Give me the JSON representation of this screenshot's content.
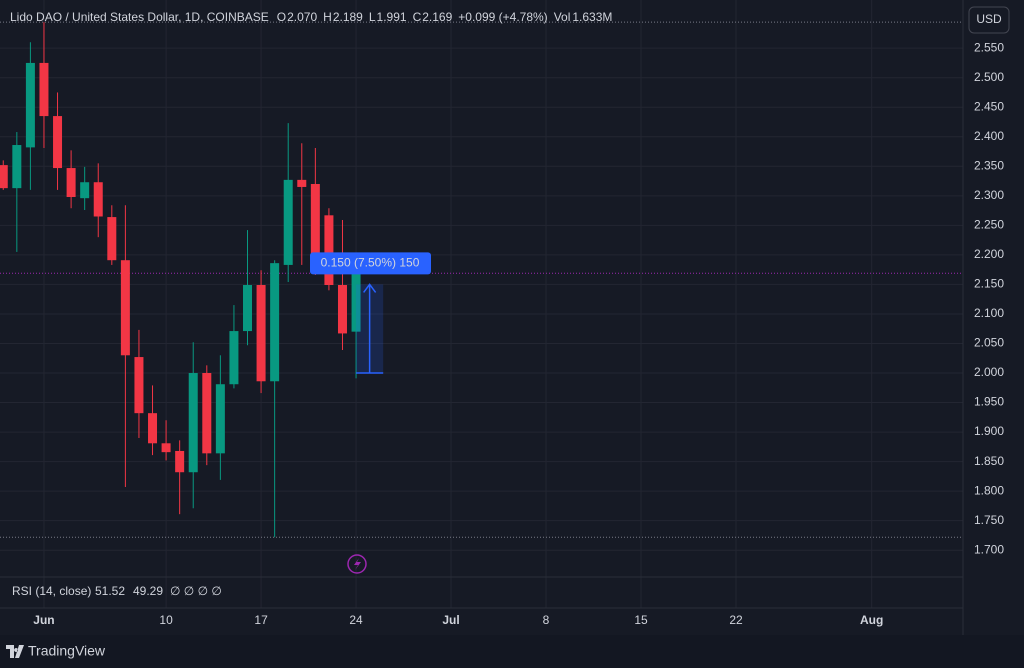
{
  "legend": {
    "symbol": "Lido DAO / United States Dollar, 1D, COINBASE",
    "fields": [
      {
        "label": "O",
        "value": "2.070"
      },
      {
        "label": "H",
        "value": "2.189"
      },
      {
        "label": "L",
        "value": "1.991"
      },
      {
        "label": "C",
        "value": "2.169"
      }
    ],
    "change": "+0.099 (+4.78%)",
    "volume_label": "Vol",
    "volume": "1.633M"
  },
  "currency_button": "USD",
  "chart_data": {
    "type": "candlestick",
    "x": [
      -3,
      -2,
      -1,
      0,
      1,
      2,
      3,
      4,
      5,
      6,
      7,
      8,
      9,
      10,
      11,
      12,
      13,
      14,
      15,
      16,
      17,
      18,
      19,
      20,
      21,
      22,
      23
    ],
    "xlim": [
      -3.24,
      67.7
    ],
    "xticks": [
      {
        "value": 0,
        "label": "Jun"
      },
      {
        "value": 9,
        "label": "10"
      },
      {
        "value": 16,
        "label": "17"
      },
      {
        "value": 23,
        "label": "24"
      },
      {
        "value": 30,
        "label": "Jul"
      },
      {
        "value": 37,
        "label": "8"
      },
      {
        "value": 44,
        "label": "15"
      },
      {
        "value": 51,
        "label": "22"
      },
      {
        "value": 61,
        "label": "Aug"
      }
    ],
    "open": [
      2.352,
      2.313,
      2.382,
      2.525,
      2.435,
      2.347,
      2.296,
      2.323,
      2.264,
      2.191,
      2.027,
      1.932,
      1.881,
      1.868,
      1.832,
      2.0,
      1.864,
      1.981,
      2.071,
      2.149,
      1.986,
      2.183,
      2.327,
      2.32,
      2.267,
      2.149,
      2.07
    ],
    "high": [
      2.36,
      2.408,
      2.56,
      2.594,
      2.475,
      2.377,
      2.349,
      2.355,
      2.284,
      2.284,
      2.073,
      1.979,
      1.92,
      1.886,
      2.052,
      2.013,
      2.03,
      2.115,
      2.242,
      2.174,
      2.191,
      2.423,
      2.389,
      2.381,
      2.279,
      2.259,
      2.189
    ],
    "low": [
      2.31,
      2.205,
      2.31,
      2.381,
      2.31,
      2.279,
      2.276,
      2.23,
      2.183,
      1.807,
      1.89,
      1.861,
      1.852,
      1.761,
      1.771,
      1.844,
      1.819,
      1.974,
      2.047,
      1.966,
      1.722,
      2.154,
      2.183,
      2.166,
      2.14,
      2.039,
      1.991
    ],
    "close": [
      2.313,
      2.386,
      2.525,
      2.435,
      2.347,
      2.298,
      2.323,
      2.265,
      2.191,
      2.03,
      1.932,
      1.881,
      1.866,
      1.832,
      2.0,
      1.864,
      1.981,
      2.071,
      2.149,
      1.986,
      2.186,
      2.327,
      2.315,
      2.191,
      2.149,
      2.067,
      2.169
    ],
    "up_color": "#089981",
    "down_color": "#f23645",
    "ylim": [
      1.658,
      2.618
    ],
    "yticks": [
      {
        "value": 1.7,
        "label": "1.700"
      },
      {
        "value": 1.75,
        "label": "1.750"
      },
      {
        "value": 1.8,
        "label": "1.800"
      },
      {
        "value": 1.85,
        "label": "1.850"
      },
      {
        "value": 1.9,
        "label": "1.900"
      },
      {
        "value": 1.95,
        "label": "1.950"
      },
      {
        "value": 2.0,
        "label": "2.000"
      },
      {
        "value": 2.05,
        "label": "2.050"
      },
      {
        "value": 2.1,
        "label": "2.100"
      },
      {
        "value": 2.15,
        "label": "2.150"
      },
      {
        "value": 2.2,
        "label": "2.200"
      },
      {
        "value": 2.25,
        "label": "2.250"
      },
      {
        "value": 2.3,
        "label": "2.300"
      },
      {
        "value": 2.35,
        "label": "2.350"
      },
      {
        "value": 2.4,
        "label": "2.400"
      },
      {
        "value": 2.45,
        "label": "2.450"
      },
      {
        "value": 2.5,
        "label": "2.500"
      },
      {
        "value": 2.55,
        "label": "2.550"
      }
    ],
    "grid": true,
    "last_price_line": 2.169,
    "last_price_color": "#9c27b0",
    "high_line": 2.594,
    "low_line": 1.722,
    "measure": {
      "x_from": 23,
      "x_to": 25,
      "from": 2.0,
      "to": 2.15,
      "label": "0.150 (7.50%) 150",
      "color": "#2962ff"
    }
  },
  "rsi": {
    "title": "RSI (14, close)",
    "values": [
      51.52,
      49.29
    ],
    "colors": [
      "#7e57c2",
      "#f7c948"
    ],
    "extra": "∅ ∅ ∅ ∅"
  },
  "footer": {
    "brand": "TradingView"
  }
}
